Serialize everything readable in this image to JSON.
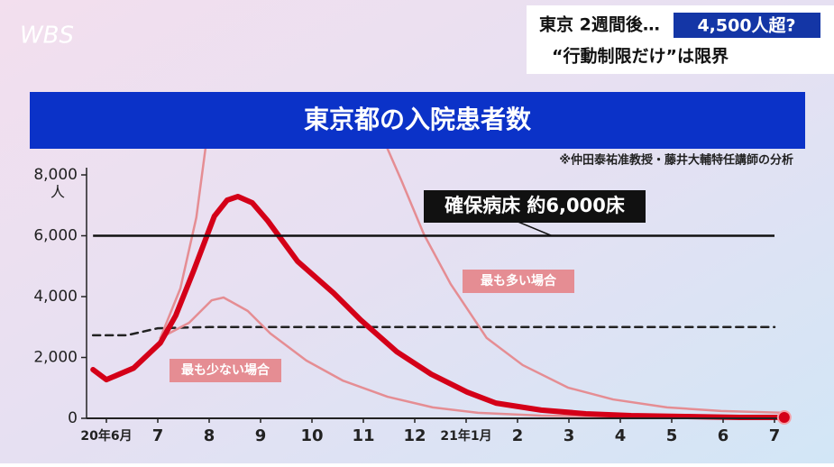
{
  "header": {
    "logo": "WBS",
    "caption_line1": "東京 2週間後…",
    "caption_highlight": "4,500人超?",
    "caption_line2": "“行動制限だけ”は限界"
  },
  "chart_data": {
    "type": "line",
    "title": "東京都の入院患者数",
    "source": "※仲田泰祐准教授・藤井大輔特任講師の分析",
    "y_unit": "人",
    "xlim": [
      -0.3,
      13.3
    ],
    "xticks": [
      {
        "value": 0,
        "label": "20年6月"
      },
      {
        "value": 1,
        "label": "7"
      },
      {
        "value": 2,
        "label": "8"
      },
      {
        "value": 3,
        "label": "9"
      },
      {
        "value": 4,
        "label": "10"
      },
      {
        "value": 5,
        "label": "11"
      },
      {
        "value": 6,
        "label": "12"
      },
      {
        "value": 7,
        "label": "21年1月"
      },
      {
        "value": 8,
        "label": "2"
      },
      {
        "value": 9,
        "label": "3"
      },
      {
        "value": 10,
        "label": "4"
      },
      {
        "value": 11,
        "label": "5"
      },
      {
        "value": 12,
        "label": "6"
      },
      {
        "value": 13,
        "label": "7"
      }
    ],
    "ylim": [
      0,
      8000
    ],
    "yticks": [
      {
        "value": 0,
        "label": "0"
      },
      {
        "value": 2000,
        "label": "2,000"
      },
      {
        "value": 4000,
        "label": "4,000"
      },
      {
        "value": 6000,
        "label": "6,000"
      },
      {
        "value": 8000,
        "label": "8,000"
      }
    ],
    "reference_line": {
      "value": 6000,
      "label": "確保病床 約6,000床",
      "color": "#111111"
    },
    "series": [
      {
        "color": "#222222",
        "style": "dashed",
        "x": [
          -0.26,
          0.4,
          1.0,
          2.0,
          13.0
        ],
        "values": [
          2730,
          2730,
          2960,
          3000,
          3000
        ]
      },
      {
        "name": "最も多い場合",
        "color": "#e58d93",
        "style": "thin",
        "x": [
          1.05,
          1.44,
          1.75,
          1.93,
          null,
          5.47,
          5.74,
          6.18,
          6.7,
          7.4,
          8.1,
          8.98,
          9.86,
          10.91,
          11.96,
          13.19
        ],
        "values": [
          2640,
          4270,
          6600,
          8900,
          null,
          8860,
          7820,
          6040,
          4410,
          2640,
          1750,
          1010,
          620,
          360,
          240,
          180
        ]
      },
      {
        "name": "最も少ない場合",
        "color": "#e58d93",
        "style": "thin",
        "x": [
          1.05,
          1.61,
          2.05,
          2.28,
          2.75,
          3.19,
          3.89,
          4.6,
          5.47,
          6.35,
          7.23,
          8.46,
          10.21,
          13.19
        ],
        "values": [
          2640,
          3140,
          3880,
          3970,
          3530,
          2790,
          1900,
          1240,
          710,
          360,
          180,
          90,
          60,
          60
        ]
      },
      {
        "color": "#d40018",
        "style": "thick",
        "x": [
          -0.26,
          0,
          0.53,
          1.05,
          1.35,
          1.7,
          2.1,
          2.35,
          2.56,
          2.84,
          3.14,
          3.72,
          4.42,
          4.95,
          5.65,
          6.32,
          7.02,
          7.58,
          8.46,
          9.33,
          10.21,
          11.26,
          12.32,
          13.19
        ],
        "values": [
          1600,
          1270,
          1650,
          2480,
          3380,
          4860,
          6640,
          7170,
          7290,
          7080,
          6490,
          5160,
          4120,
          3230,
          2190,
          1450,
          860,
          500,
          270,
          150,
          90,
          60,
          30,
          30
        ]
      }
    ]
  }
}
